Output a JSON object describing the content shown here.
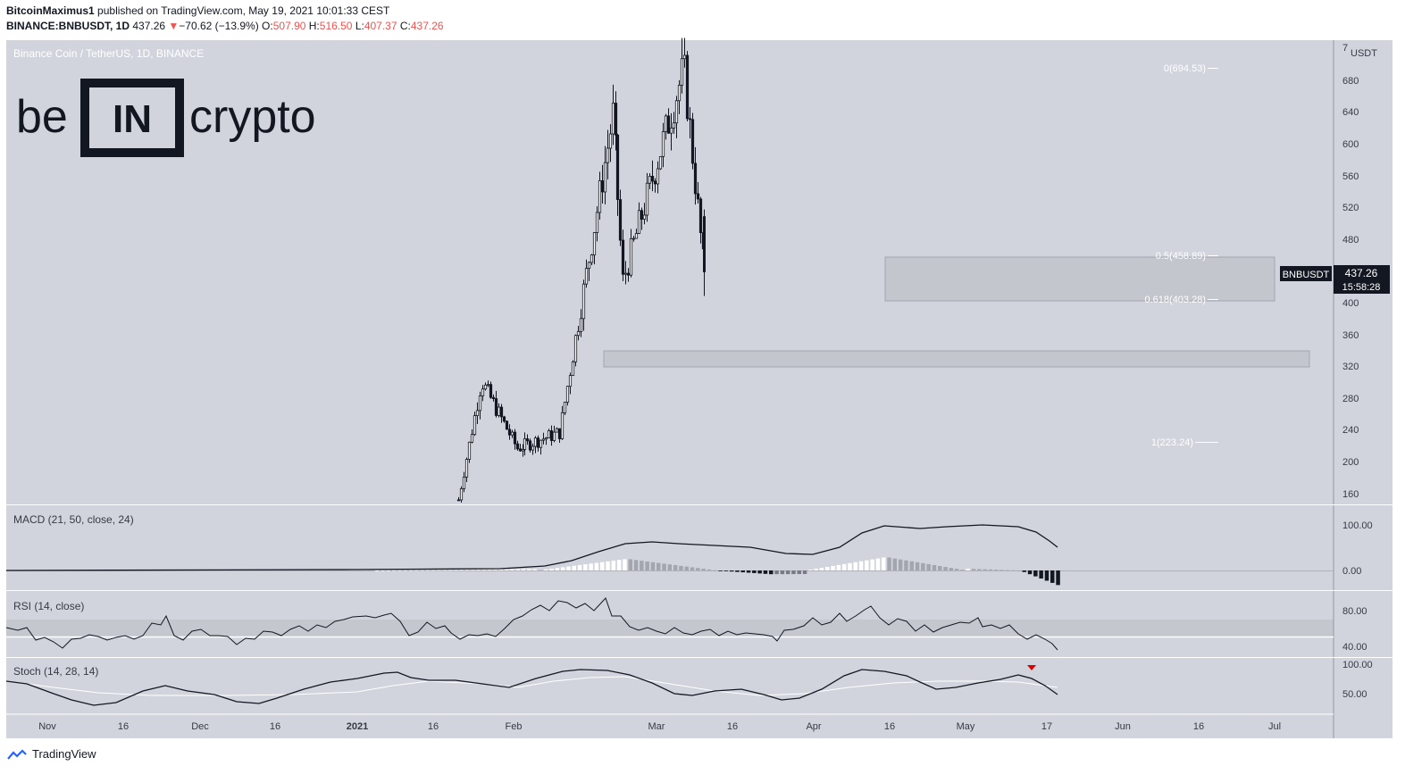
{
  "header": {
    "author": "BitcoinMaximus1",
    "published": "published on TradingView.com, May 19, 2021 10:01:33 CEST",
    "symbol": "BINANCE:BNBUSDT, 1D",
    "last": "437.26",
    "change_arrow": "▼",
    "change": "−70.62 (−13.9%)",
    "o_label": "O:",
    "o": "507.90",
    "h_label": "H:",
    "h": "516.50",
    "l_label": "L:",
    "l": "407.37",
    "c_label": "C:",
    "c": "437.26"
  },
  "pane_title": "Binance Coin / TetherUS, 1D, BINANCE",
  "logo": {
    "left": "be",
    "middle": "IN",
    "right": "crypto"
  },
  "price_axis": {
    "unit_top": "7",
    "unit": "USDT",
    "ticks": [
      680,
      640,
      600,
      560,
      520,
      480,
      400,
      360,
      320,
      280,
      240,
      200,
      160
    ]
  },
  "price_badge": {
    "symbol": "BNBUSDT",
    "price": "437.26",
    "countdown": "15:58:28"
  },
  "fib_levels": [
    {
      "label": "0(694.53)",
      "value": 694.53
    },
    {
      "label": "0.5(458.89)",
      "value": 458.89
    },
    {
      "label": "0.618(403.28)",
      "value": 403.28
    },
    {
      "label": "1(223.24)",
      "value": 223.24
    }
  ],
  "support_zones": [
    {
      "from": "Apr 16",
      "to": "Jun 30",
      "low": 403,
      "high": 458
    },
    {
      "from": "Feb 19",
      "to": "Jul 10",
      "low": 318,
      "high": 338
    }
  ],
  "time_axis": [
    "Nov",
    "16",
    "Dec",
    "16",
    "2021",
    "16",
    "Feb",
    "Mar",
    "16",
    "Apr",
    "16",
    "May",
    "17",
    "Jun",
    "16",
    "Jul"
  ],
  "indicators": {
    "macd": {
      "title": "MACD (21, 50, close, 24)",
      "ticks": [
        "100.00",
        "0.00"
      ]
    },
    "rsi": {
      "title": "RSI (14, close)",
      "ticks": [
        "80.00",
        "40.00"
      ]
    },
    "stoch": {
      "title": "Stoch (14, 28, 14)",
      "ticks": [
        "100.00",
        "50.00"
      ]
    }
  },
  "footer": {
    "brand": "TradingView"
  },
  "colors": {
    "pane_bg": "#d1d4dc",
    "zone": "#c3c6cd",
    "candle": "#131722",
    "down_marker": "#e00000"
  },
  "chart_data": {
    "type": "candlestick",
    "title": "Binance Coin / TetherUS, 1D, BINANCE",
    "ylabel": "USDT",
    "ylim": [
      140,
      700
    ],
    "key_points": [
      {
        "date": "2021-02-10",
        "close": 150
      },
      {
        "date": "2021-02-19",
        "high": 348,
        "close": 300
      },
      {
        "date": "2021-03-05",
        "close": 215
      },
      {
        "date": "2021-03-22",
        "close": 235
      },
      {
        "date": "2021-04-12",
        "high": 638
      },
      {
        "date": "2021-04-16",
        "low": 425
      },
      {
        "date": "2021-05-10",
        "high": 694.53
      },
      {
        "date": "2021-05-18",
        "open": 507.9,
        "high": 516.5,
        "low": 407.37,
        "close": 437.26
      }
    ]
  }
}
